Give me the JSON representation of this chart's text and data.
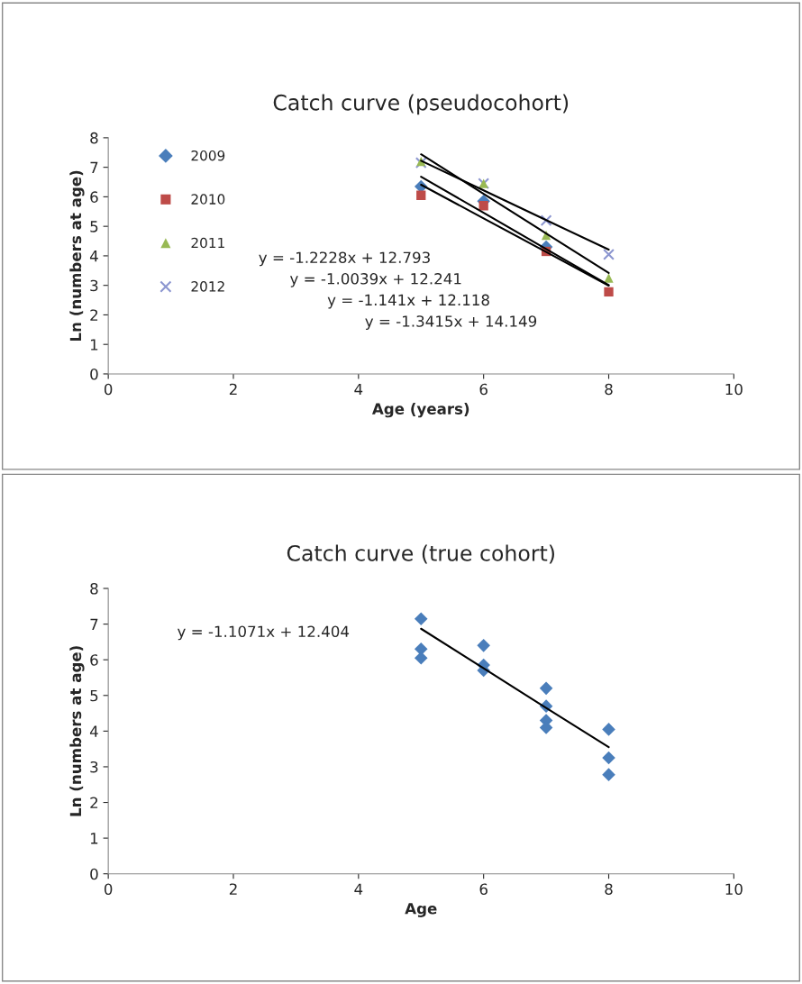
{
  "chart_data": [
    {
      "type": "scatter",
      "title": "Catch curve (pseudocohort)",
      "xlabel": "Age (years)",
      "ylabel": "Ln (numbers at age)",
      "x": [
        5,
        6,
        7,
        8
      ],
      "series": [
        {
          "name": "2009",
          "color": "#4a7ebb",
          "marker": "diamond",
          "values": [
            6.35,
            5.85,
            4.3,
            null
          ]
        },
        {
          "name": "2010",
          "color": "#be4b48",
          "marker": "square",
          "values": [
            6.05,
            5.7,
            4.15,
            2.78
          ]
        },
        {
          "name": "2011",
          "color": "#98b954",
          "marker": "triangle",
          "values": [
            7.2,
            6.45,
            4.7,
            3.25
          ]
        },
        {
          "name": "2012",
          "color": "#8c96d0",
          "marker": "cross",
          "values": [
            7.15,
            6.45,
            5.2,
            4.05
          ]
        },
        {
          "type": "line",
          "color": "#000000",
          "marker": "none",
          "values": [
            6.68,
            5.46,
            4.23,
            3.01
          ]
        },
        {
          "type": "line",
          "color": "#000000",
          "marker": "none",
          "values": [
            7.22,
            6.22,
            5.21,
            4.21
          ]
        },
        {
          "type": "line",
          "color": "#000000",
          "marker": "none",
          "values": [
            6.41,
            5.27,
            4.13,
            2.99
          ]
        },
        {
          "type": "line",
          "color": "#000000",
          "marker": "none",
          "values": [
            7.44,
            6.1,
            4.76,
            3.42
          ]
        }
      ],
      "annotations": [
        "y = -1.2228x + 12.793",
        "y = -1.0039x + 12.241",
        "y = -1.141x + 12.118",
        "y = -1.3415x + 14.149"
      ],
      "xlim": [
        0,
        10
      ],
      "xticks": [
        0,
        2,
        4,
        6,
        8,
        10
      ],
      "ylim": [
        0,
        8
      ],
      "yticks": [
        0,
        1,
        2,
        3,
        4,
        5,
        6,
        7,
        8
      ],
      "grid": false,
      "legend": "top left"
    },
    {
      "type": "scatter",
      "title": "Catch curve (true cohort)",
      "xlabel": "Age",
      "ylabel": "Ln (numbers at age)",
      "x": [
        5,
        5,
        5,
        6,
        6,
        6,
        7,
        7,
        7,
        7,
        8,
        8,
        8
      ],
      "series": [
        {
          "color": "#4a7ebb",
          "marker": "diamond",
          "values": [
            7.15,
            6.3,
            6.05,
            6.4,
            5.85,
            5.7,
            5.2,
            4.7,
            4.3,
            4.1,
            4.05,
            3.25,
            2.78
          ]
        },
        {
          "type": "line",
          "color": "#000000",
          "marker": "none",
          "x": [
            5,
            6,
            7,
            8
          ],
          "values": [
            6.87,
            5.76,
            4.65,
            3.55
          ]
        }
      ],
      "annotations": [
        "y = -1.1071x + 12.404"
      ],
      "xlim": [
        0,
        10
      ],
      "xticks": [
        0,
        2,
        4,
        6,
        8,
        10
      ],
      "ylim": [
        0,
        8
      ],
      "yticks": [
        0,
        1,
        2,
        3,
        4,
        5,
        6,
        7,
        8
      ],
      "grid": false,
      "legend": false
    }
  ]
}
